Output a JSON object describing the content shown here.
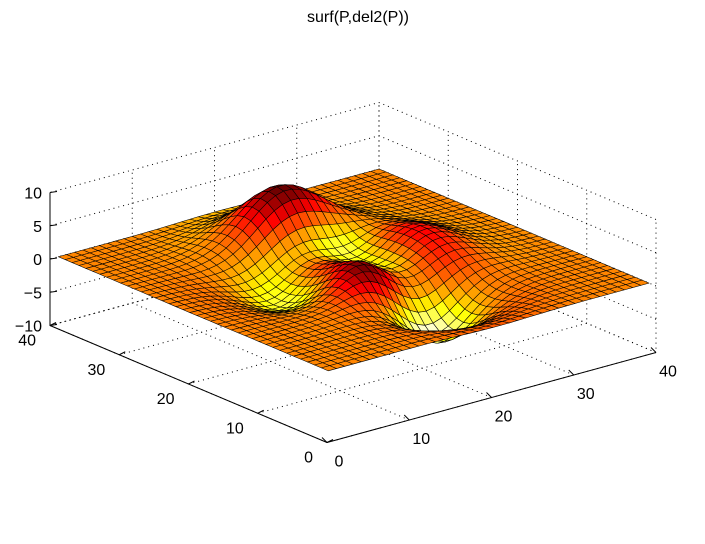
{
  "chart_data": {
    "type": "surface",
    "title": "surf(P,del2(P))",
    "function": "P = peaks(...) on a 40x40 grid, colored by del2(P)",
    "colormap": "hot",
    "grid_size": 40,
    "axes": {
      "x": {
        "lim": [
          0,
          40
        ],
        "ticks": [
          0,
          10,
          20,
          30,
          40
        ]
      },
      "y": {
        "lim": [
          0,
          40
        ],
        "ticks": [
          0,
          10,
          20,
          30,
          40
        ]
      },
      "z": {
        "lim": [
          -10,
          10
        ],
        "ticks": [
          -10,
          -5,
          0,
          5,
          10
        ]
      }
    },
    "grid": true,
    "box": false
  }
}
